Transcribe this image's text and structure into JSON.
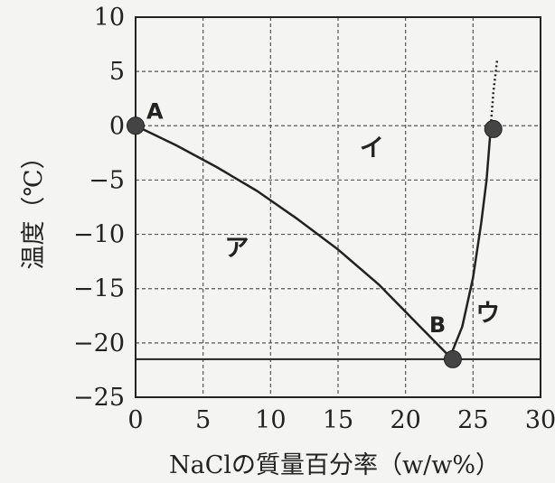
{
  "chart_data": {
    "type": "line",
    "title": "",
    "xlabel": "NaClの質量百分率（w/w%）",
    "ylabel": "温度（℃）",
    "xlim": [
      0,
      30
    ],
    "ylim": [
      -25,
      10
    ],
    "xticks": [
      "0",
      "5",
      "10",
      "15",
      "20",
      "25",
      "30"
    ],
    "yticks": [
      "10",
      "5",
      "0",
      "−5",
      "−10",
      "−15",
      "−20",
      "−25"
    ],
    "grid": true,
    "series": [
      {
        "x": [
          0,
          3,
          6,
          9,
          12,
          15,
          18,
          21,
          23.3
        ],
        "y": [
          0,
          -1.8,
          -3.8,
          -6.0,
          -8.6,
          -11.4,
          -14.6,
          -18.4,
          -21.3
        ]
      },
      {
        "x": [
          23.3,
          24.2,
          25.0,
          25.6,
          26.0,
          26.3
        ],
        "y": [
          -21.3,
          -18.5,
          -14.0,
          -9.0,
          -5.0,
          -0.4
        ]
      },
      {
        "x": [
          26.3,
          26.5,
          26.8
        ],
        "y": [
          -0.4,
          3.0,
          6.2
        ],
        "style": "dotted"
      }
    ],
    "hline": -21.5,
    "points": [
      {
        "label": "A",
        "x": 0,
        "y": 0
      },
      {
        "label": "B",
        "x": 23.5,
        "y": -21.5
      },
      {
        "label": "",
        "x": 26.5,
        "y": -0.3
      }
    ],
    "region_labels": [
      {
        "text": "ア",
        "x": 7.5,
        "y": -12
      },
      {
        "text": "イ",
        "x": 17.5,
        "y": -2.8
      },
      {
        "text": "ウ",
        "x": 26.1,
        "y": -18
      }
    ]
  }
}
